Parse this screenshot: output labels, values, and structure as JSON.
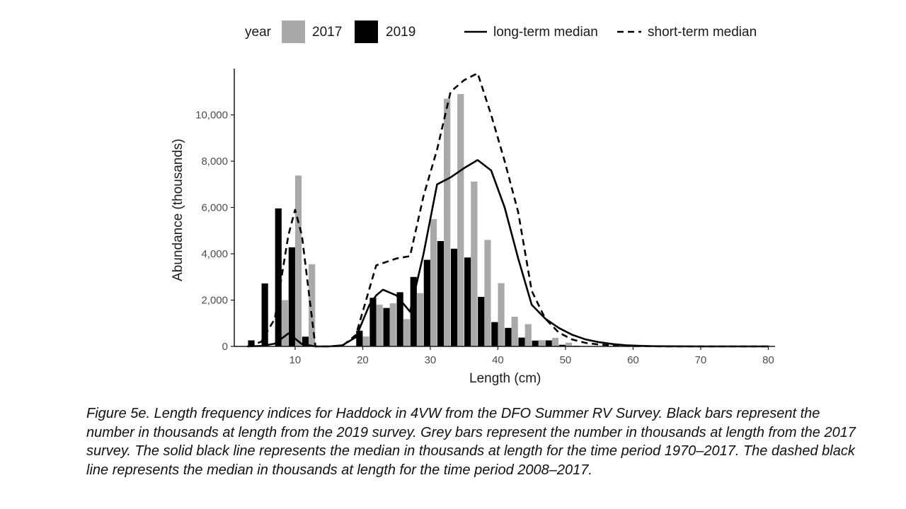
{
  "colors": {
    "bar_2017": "#a9a9a9",
    "bar_2019": "#000000",
    "line": "#000000",
    "axis": "#1a1a1a"
  },
  "legend": {
    "title": "year",
    "year_2017": "2017",
    "year_2019": "2019",
    "long_term": "long-term median",
    "short_term": "short-term median"
  },
  "caption": "Figure 5e. Length frequency indices for Haddock in 4VW from the DFO Summer RV Survey. Black bars represent the number in thousands at length from the 2019 survey. Grey bars represent the number in thousands at length from the 2017 survey. The solid black line represents the median in thousands at length for the time period 1970–2017. The dashed black line represents the median in thousands at length for the time period 2008–2017.",
  "chart_data": {
    "type": "bar",
    "xlabel": "Length (cm)",
    "ylabel": "Abundance (thousands)",
    "xlim": [
      1,
      81
    ],
    "ylim": [
      0,
      12000
    ],
    "x_ticks": [
      10,
      20,
      30,
      40,
      50,
      60,
      70,
      80
    ],
    "y_ticks": [
      0,
      2000,
      4000,
      6000,
      8000,
      10000
    ],
    "x_tick_labels": [
      "10",
      "20",
      "30",
      "40",
      "50",
      "60",
      "70",
      "80"
    ],
    "y_tick_labels": [
      "0",
      "2,000",
      "4,000",
      "6,000",
      "8,000",
      "10,000"
    ],
    "grid": false,
    "legend_position": "top",
    "categories": [
      4,
      6,
      8,
      10,
      12,
      14,
      16,
      18,
      20,
      22,
      24,
      26,
      28,
      30,
      32,
      34,
      36,
      38,
      40,
      42,
      44,
      46,
      48,
      50,
      52,
      54
    ],
    "series": [
      {
        "name": "2017",
        "type": "bar",
        "values": [
          0,
          0,
          2000,
          7380,
          3550,
          0,
          0,
          0,
          430,
          1800,
          1860,
          1180,
          2300,
          5500,
          10700,
          10900,
          7120,
          4600,
          2730,
          1280,
          960,
          270,
          370,
          160,
          0,
          0
        ]
      },
      {
        "name": "2019",
        "type": "bar",
        "values": [
          260,
          2720,
          5960,
          4280,
          420,
          0,
          0,
          0,
          680,
          2100,
          1660,
          2340,
          3000,
          3740,
          4550,
          4220,
          3840,
          2140,
          1050,
          800,
          380,
          250,
          260,
          70,
          30,
          0
        ]
      },
      {
        "name": "long-term median",
        "type": "line",
        "style": "solid",
        "x": [
          3,
          5,
          7,
          9,
          11,
          13,
          15,
          17,
          19,
          21,
          22,
          23,
          25,
          27,
          29,
          31,
          33,
          35,
          37,
          39,
          41,
          43,
          45,
          47,
          49,
          51,
          53,
          55,
          57,
          59,
          61,
          63,
          65,
          70,
          80
        ],
        "y": [
          0,
          20,
          120,
          560,
          100,
          0,
          0,
          50,
          400,
          1800,
          2200,
          2450,
          2200,
          1500,
          4000,
          7000,
          7300,
          7700,
          8050,
          7600,
          6000,
          3800,
          1800,
          1200,
          800,
          500,
          300,
          180,
          100,
          50,
          25,
          10,
          5,
          0,
          0
        ]
      },
      {
        "name": "short-term median",
        "type": "line",
        "style": "dashed",
        "x": [
          3,
          5,
          7,
          9,
          10,
          11,
          13,
          15,
          17,
          19,
          21,
          22,
          23,
          25,
          27,
          29,
          31,
          33,
          35,
          37,
          39,
          41,
          43,
          45,
          47,
          49,
          51,
          53,
          55,
          57,
          59,
          61,
          63,
          65,
          70,
          80
        ],
        "y": [
          0,
          200,
          1200,
          4800,
          5900,
          4800,
          0,
          0,
          20,
          500,
          2500,
          3500,
          3600,
          3800,
          3900,
          6500,
          8500,
          11000,
          11500,
          11800,
          10000,
          8000,
          5800,
          2400,
          1200,
          600,
          300,
          150,
          80,
          40,
          20,
          10,
          5,
          0,
          0,
          0
        ]
      }
    ]
  }
}
